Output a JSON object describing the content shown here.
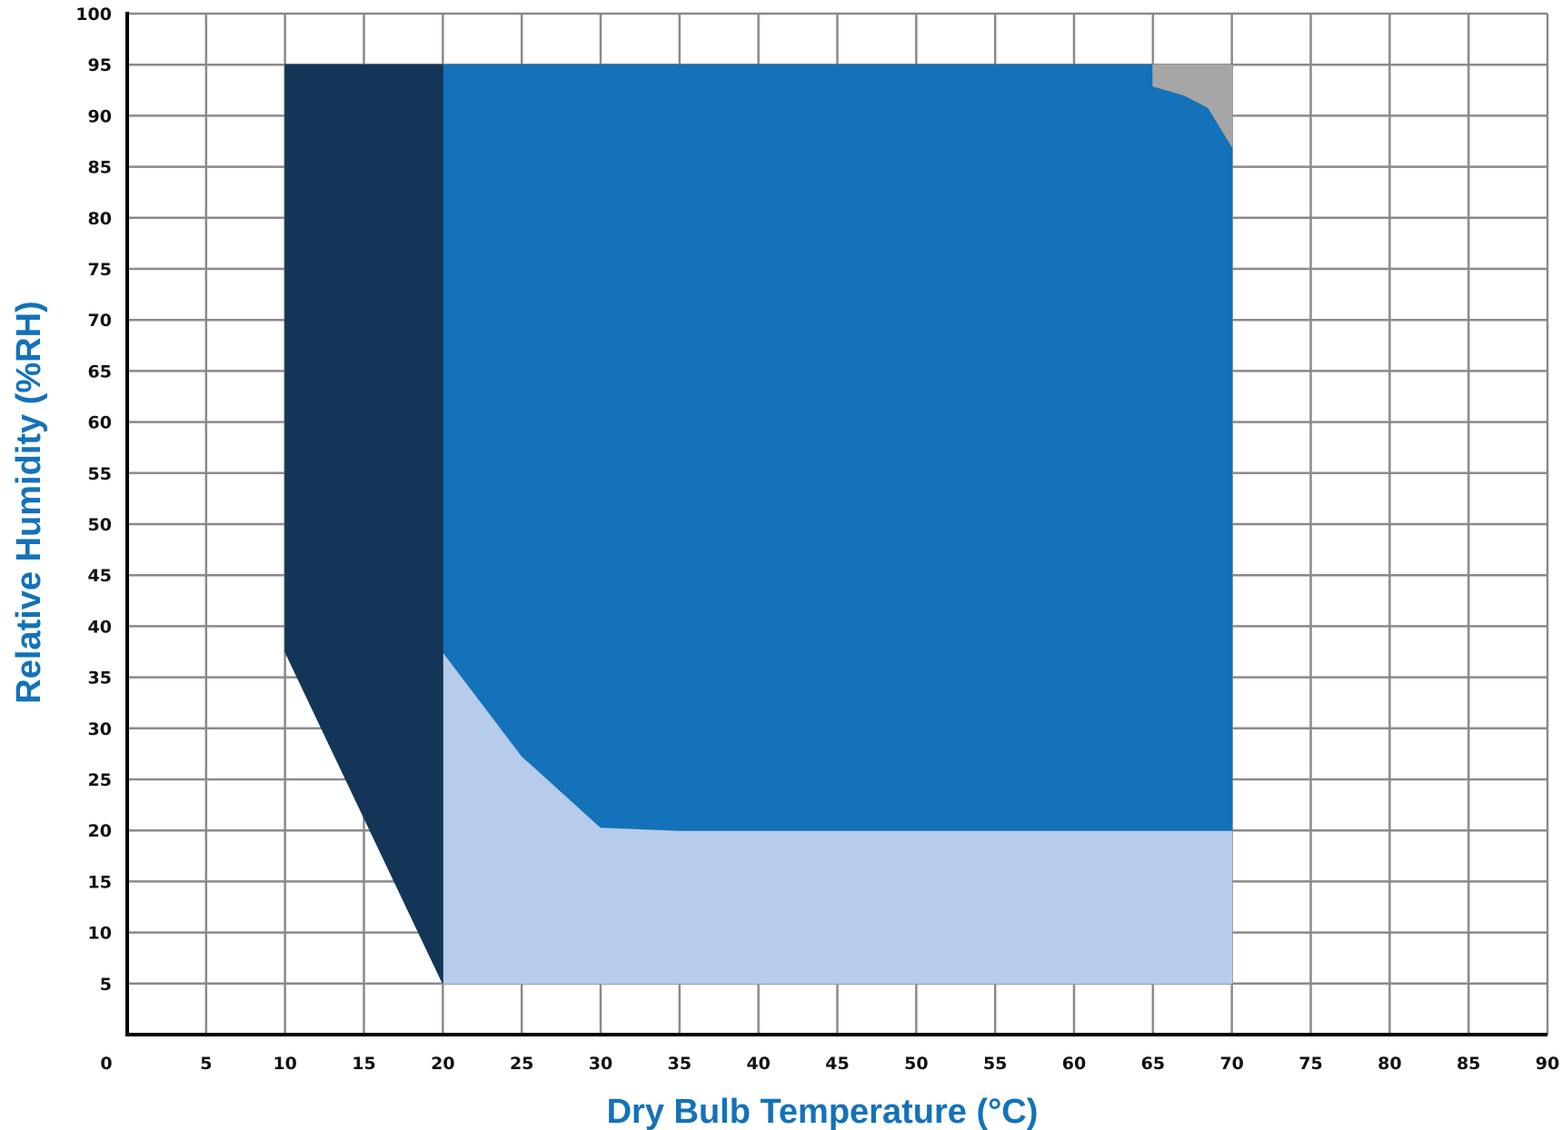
{
  "chart_data": {
    "type": "area",
    "xlabel": "Dry Bulb Temperature (°C)",
    "ylabel": "Relative Humidity (%RH)",
    "xlim": [
      0,
      90
    ],
    "ylim": [
      0,
      100
    ],
    "x_ticks": [
      0,
      5,
      10,
      15,
      20,
      25,
      30,
      35,
      40,
      45,
      50,
      55,
      60,
      65,
      70,
      75,
      80,
      85,
      90
    ],
    "y_ticks": [
      5,
      10,
      15,
      20,
      25,
      30,
      35,
      40,
      45,
      50,
      55,
      60,
      65,
      70,
      75,
      80,
      85,
      90,
      95,
      100
    ],
    "grid": true,
    "regions": [
      {
        "color": "#b7cbea",
        "points": [
          [
            20,
            5
          ],
          [
            70,
            5
          ],
          [
            70,
            20
          ],
          [
            35,
            20
          ],
          [
            30,
            20.3
          ],
          [
            25,
            27.3
          ],
          [
            20,
            37.5
          ]
        ]
      },
      {
        "color": "#1372b9",
        "points": [
          [
            20,
            37.5
          ],
          [
            25,
            27.3
          ],
          [
            30,
            20.3
          ],
          [
            35,
            20
          ],
          [
            70,
            20
          ],
          [
            70,
            87
          ],
          [
            68.5,
            90.8
          ],
          [
            67,
            92
          ],
          [
            65,
            92.9
          ],
          [
            65,
            95
          ],
          [
            20,
            95
          ]
        ]
      },
      {
        "color": "#a6a6a6",
        "points": [
          [
            65,
            95
          ],
          [
            70,
            95
          ],
          [
            70,
            87
          ],
          [
            68.5,
            90.8
          ],
          [
            67,
            92
          ],
          [
            65,
            92.9
          ]
        ]
      },
      {
        "color": "#133558",
        "points": [
          [
            10,
            95
          ],
          [
            20,
            95
          ],
          [
            20,
            5
          ],
          [
            10,
            37.5
          ]
        ]
      }
    ]
  }
}
